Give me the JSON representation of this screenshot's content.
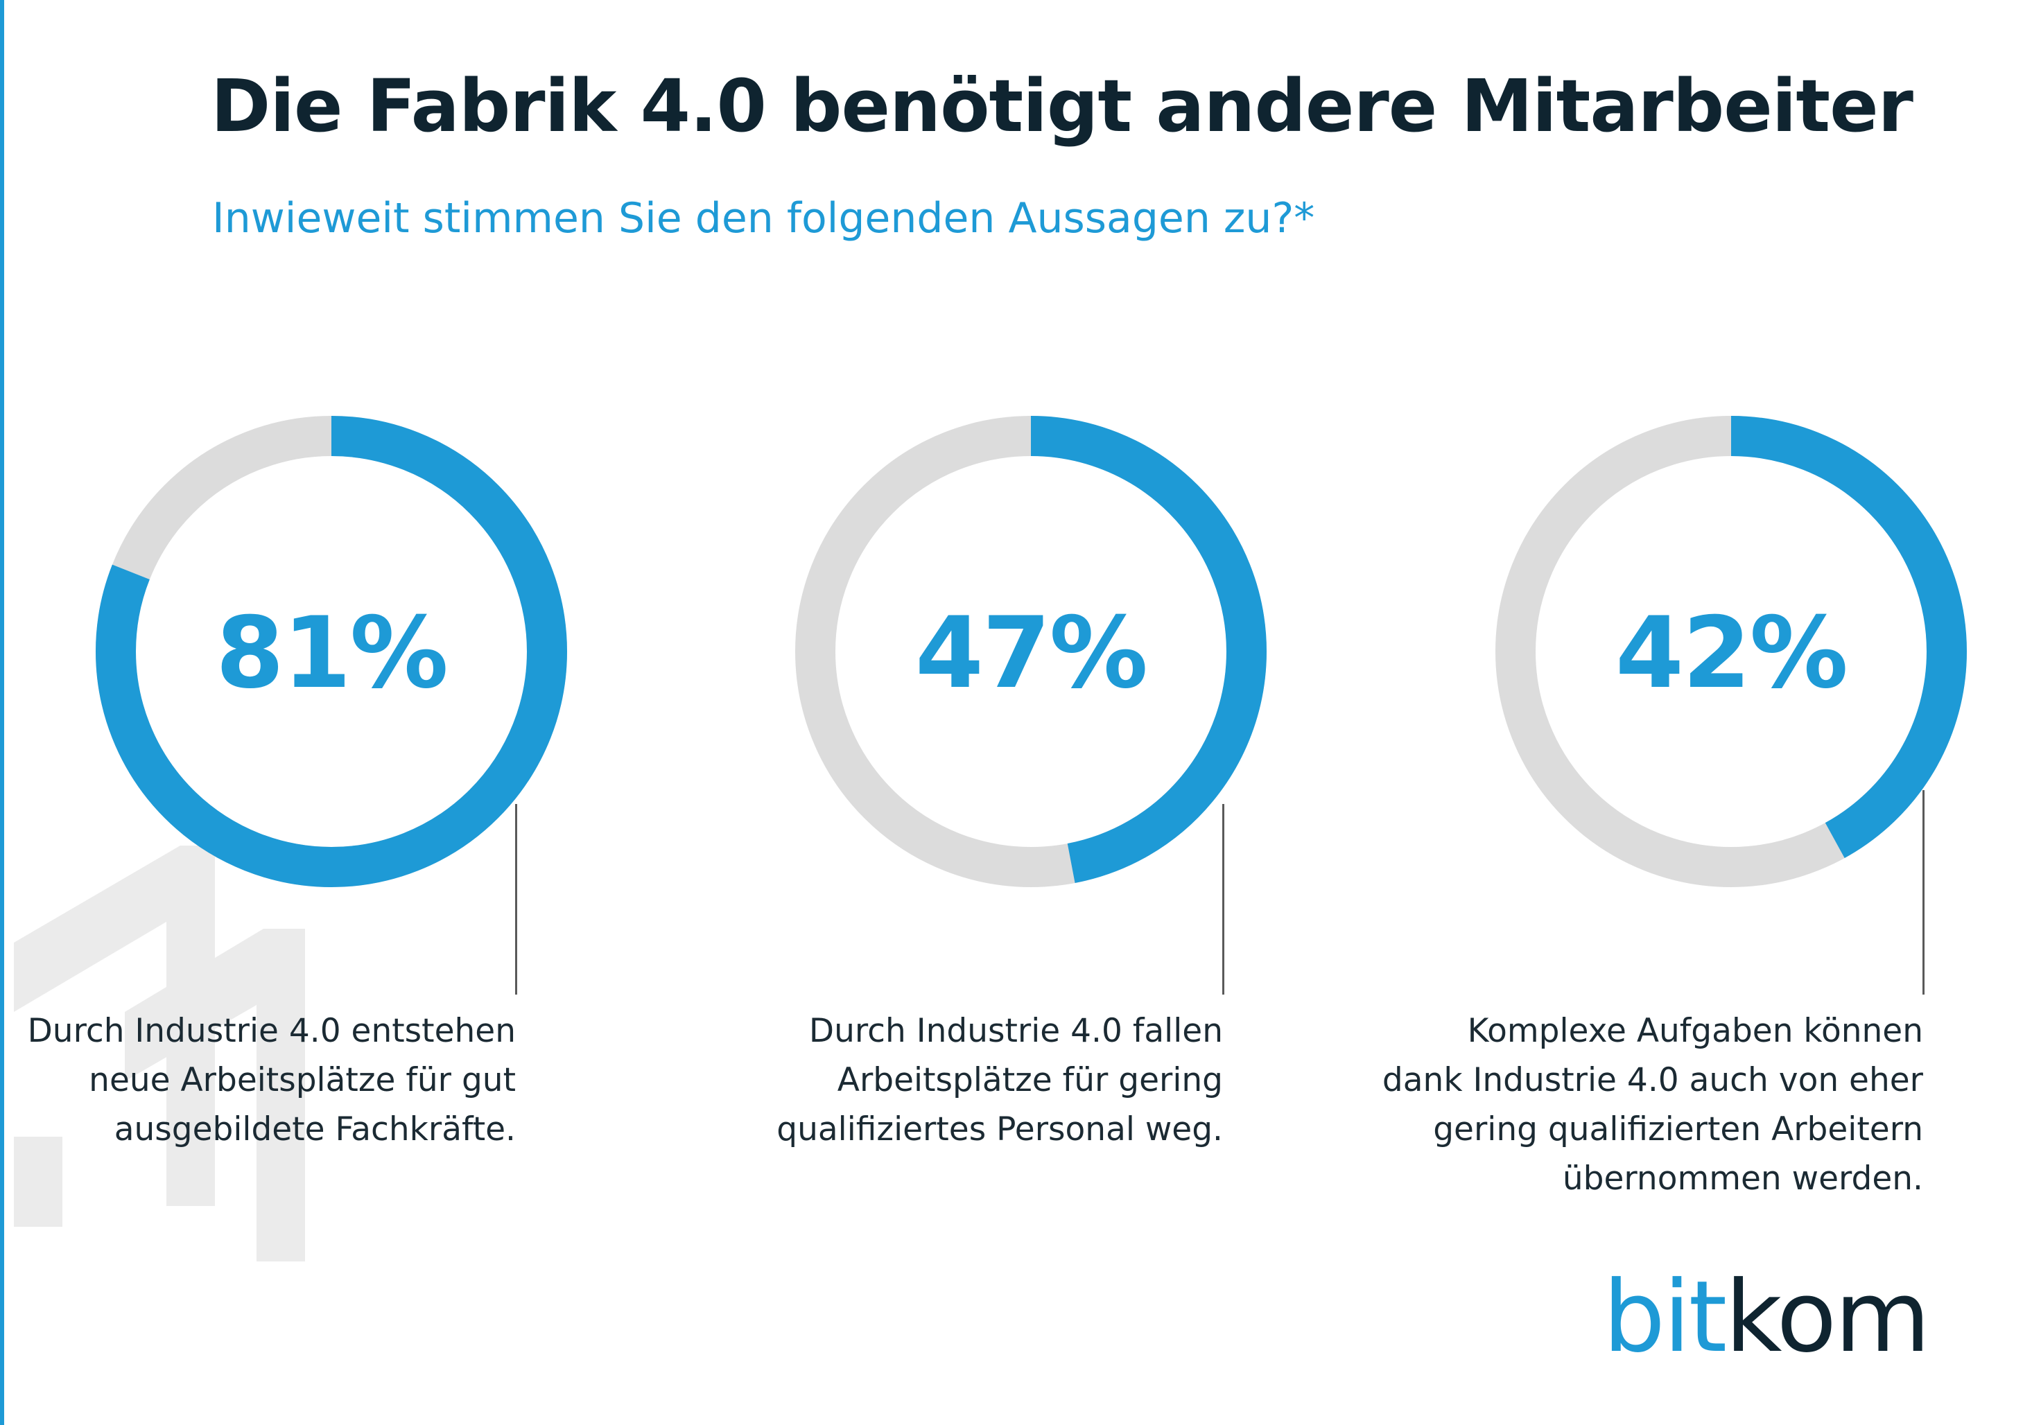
{
  "title": "Die Fabrik 4.0 benötigt andere Mitarbeiter",
  "subtitle": "Inwieweit stimmen Sie den folgenden Aussagen zu?*",
  "colors": {
    "accent": "#1e9ad6",
    "track": "#dcdcdc",
    "dark": "#0f2430"
  },
  "chart_data": [
    {
      "type": "pie",
      "variant": "donut",
      "value": 81,
      "label": "81%",
      "annotation": "Durch Industrie 4.0 entstehen\nneue Arbeitsplätze für gut\nausgebildete Fachkräfte."
    },
    {
      "type": "pie",
      "variant": "donut",
      "value": 47,
      "label": "47%",
      "annotation": "Durch Industrie 4.0 fallen\nArbeitsplätze für gering\nqualifiziertes Personal weg."
    },
    {
      "type": "pie",
      "variant": "donut",
      "value": 42,
      "label": "42%",
      "annotation": "Komplexe Aufgaben können\ndank Industrie 4.0 auch von eher\ngering qualifizierten Arbeitern\nübernommen werden."
    }
  ],
  "logo": {
    "part1": "bit",
    "part2": "kom"
  }
}
